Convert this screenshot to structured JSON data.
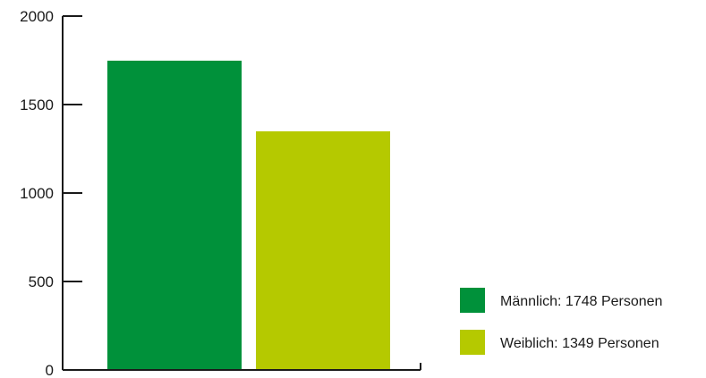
{
  "chart_data": {
    "type": "bar",
    "categories": [
      "Männlich",
      "Weiblich"
    ],
    "values": [
      1748,
      1349
    ],
    "colors": [
      "#00913a",
      "#b5c900"
    ],
    "ylim": [
      0,
      2000
    ],
    "yticks": [
      "0",
      "500",
      "1000",
      "1500",
      "2000"
    ],
    "grid": false,
    "legend_position": "right",
    "legend": [
      {
        "label": "Männlich: 1748 Personen",
        "color": "#00913a"
      },
      {
        "label": "Weiblich: 1349 Personen",
        "color": "#b5c900"
      }
    ],
    "title": "",
    "xlabel": "",
    "ylabel": ""
  }
}
